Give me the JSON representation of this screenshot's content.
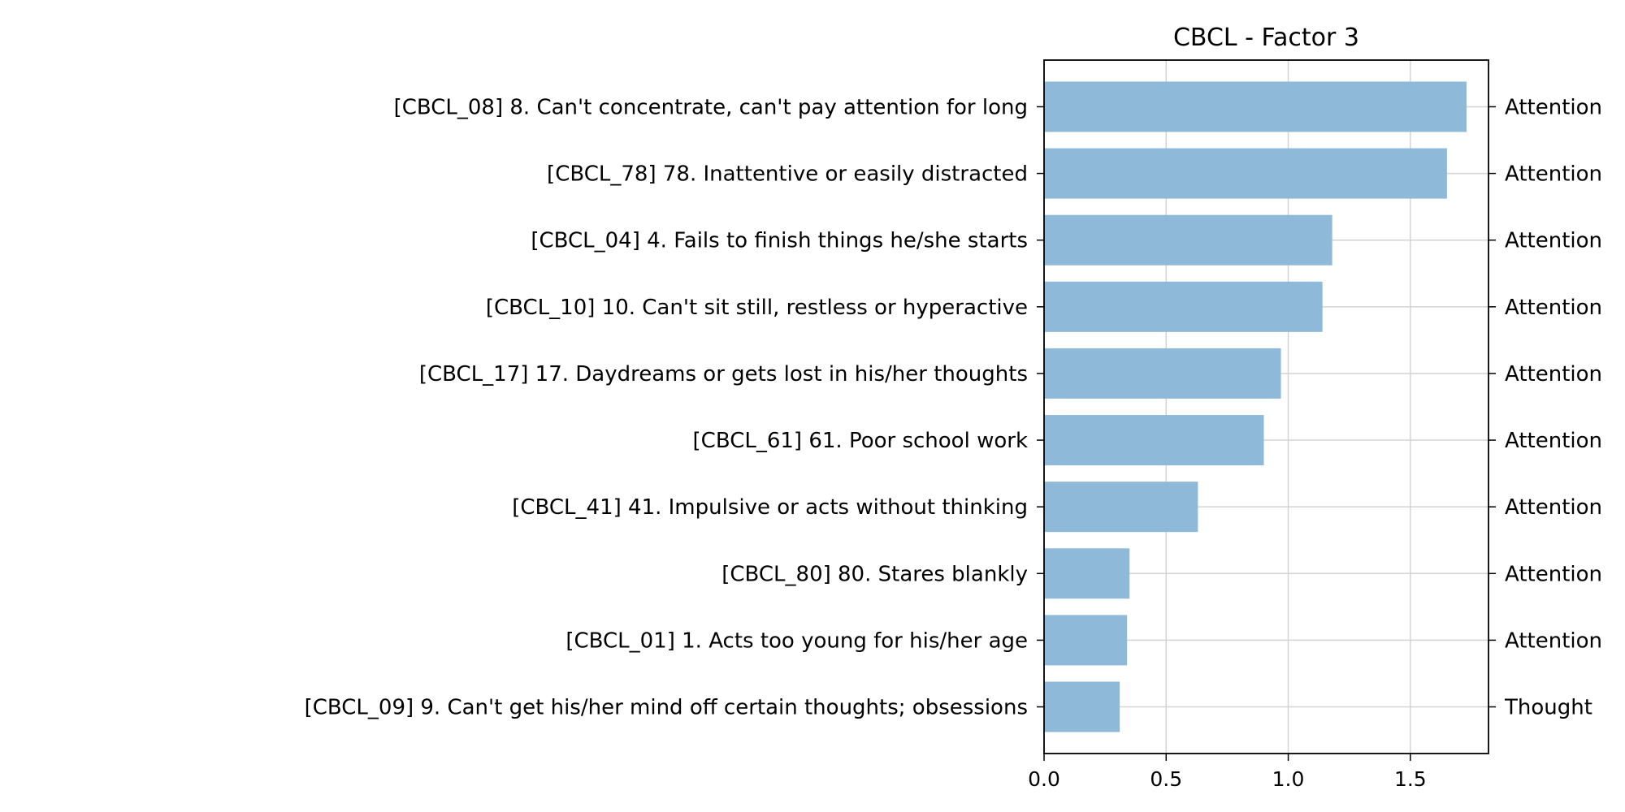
{
  "chart_data": {
    "type": "bar",
    "orientation": "horizontal",
    "title": "CBCL - Factor 3",
    "xlabel": "",
    "ylabel": "",
    "xlim": [
      0,
      1.82
    ],
    "xticks": [
      0.0,
      0.5,
      1.0,
      1.5
    ],
    "xtick_labels": [
      "0.0",
      "0.5",
      "1.0",
      "1.5"
    ],
    "grid": true,
    "bar_color": "#8fb9d9",
    "categories": [
      "[CBCL_08] 8. Can't concentrate, can't pay attention for long",
      "[CBCL_78] 78. Inattentive or easily distracted",
      "[CBCL_04] 4. Fails to finish things he/she starts",
      "[CBCL_10] 10. Can't sit still, restless or hyperactive",
      "[CBCL_17] 17. Daydreams or gets lost in his/her thoughts",
      "[CBCL_61] 61. Poor school work",
      "[CBCL_41] 41. Impulsive or acts without thinking",
      "[CBCL_80] 80. Stares blankly",
      "[CBCL_01] 1. Acts too young for his/her age",
      "[CBCL_09] 9. Can't get his/her mind off certain thoughts; obsessions"
    ],
    "values": [
      1.73,
      1.65,
      1.18,
      1.14,
      0.97,
      0.9,
      0.63,
      0.35,
      0.34,
      0.31
    ],
    "right_labels": [
      "Attention",
      "Attention",
      "Attention",
      "Attention",
      "Attention",
      "Attention",
      "Attention",
      "Attention",
      "Attention",
      "Thought"
    ]
  }
}
